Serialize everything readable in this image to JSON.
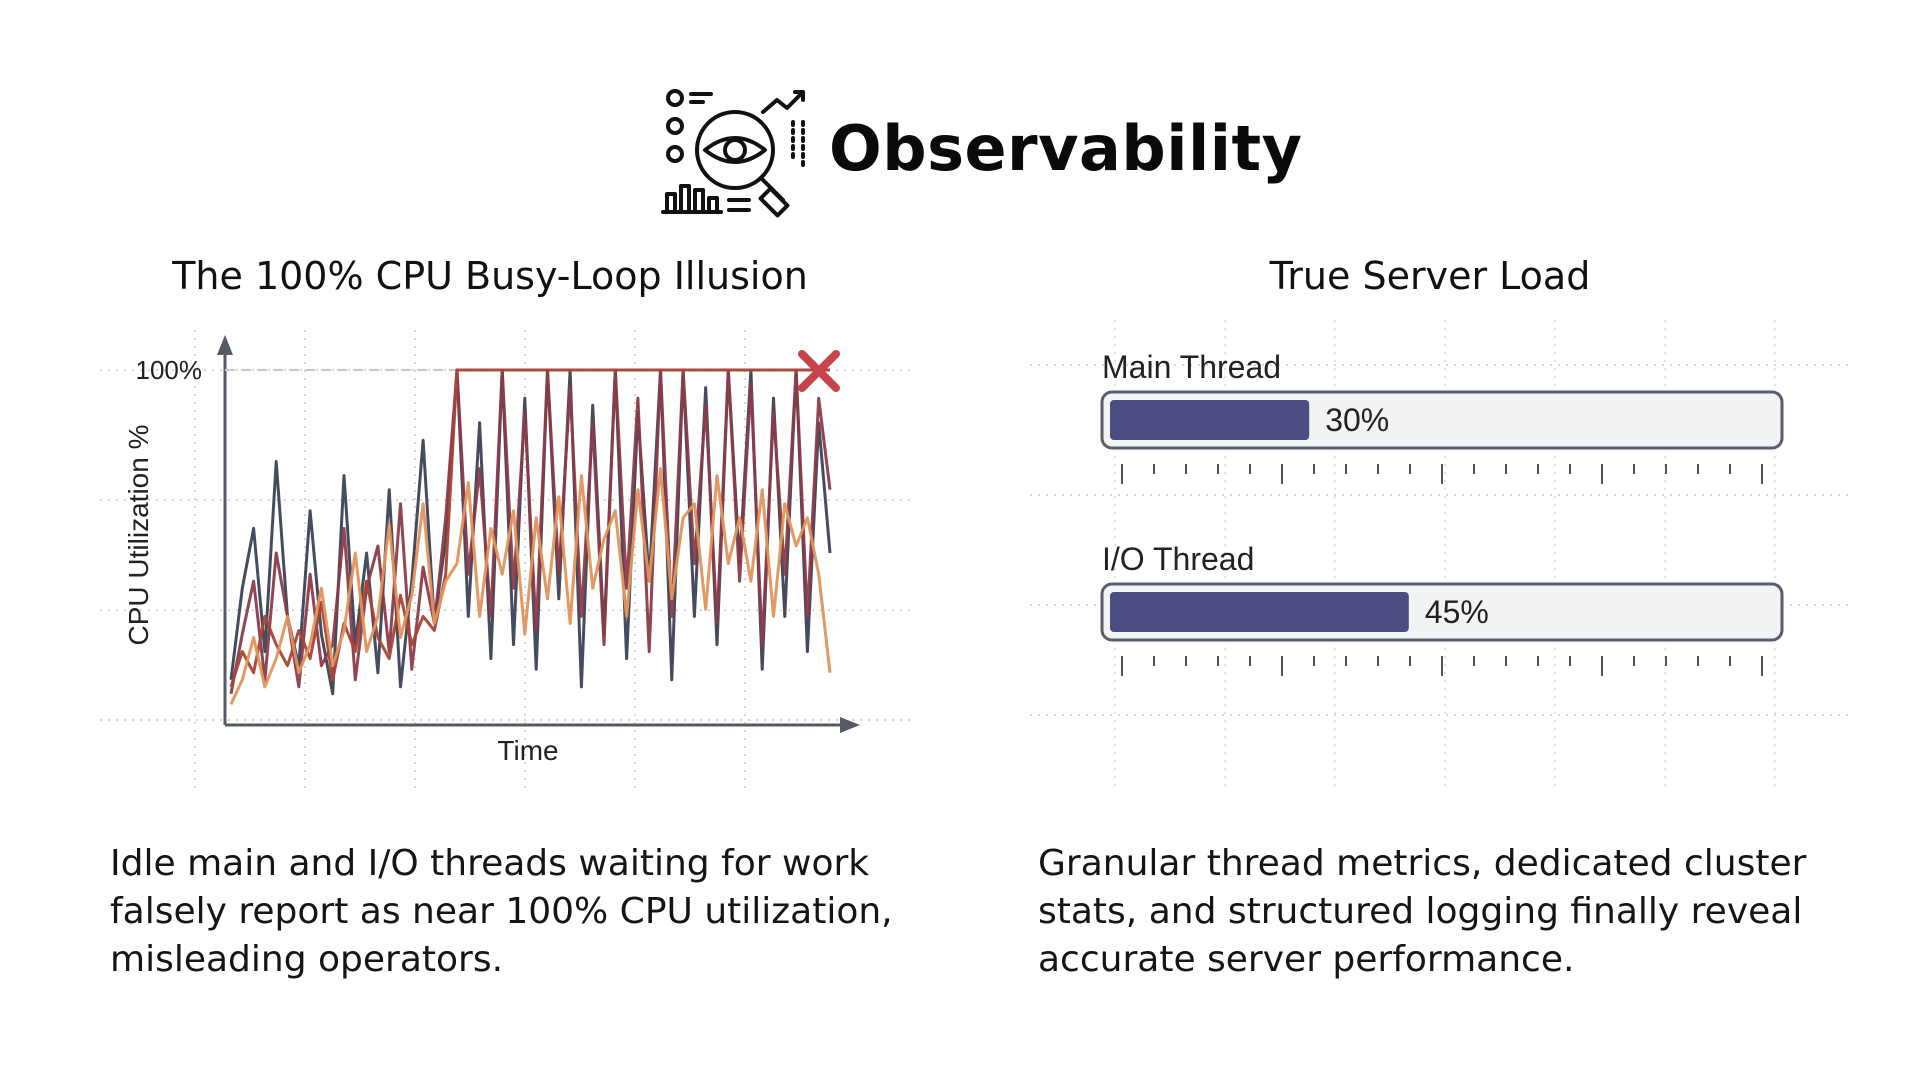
{
  "header": {
    "title": "Observability",
    "icon": "observability-eye-magnifier-icon"
  },
  "left_panel": {
    "title": "The 100% CPU Busy-Loop Illusion",
    "caption": "Idle main and I/O threads waiting for work falsely report as near 100% CPU utilization, misleading operators.",
    "marker": "x-mark-icon"
  },
  "right_panel": {
    "title": "True Server Load",
    "caption": "Granular thread metrics, dedicated cluster stats, and structured logging finally reveal accurate server performance."
  },
  "chart_data": [
    {
      "type": "line",
      "title": "",
      "xlabel": "Time",
      "ylabel": "CPU Utilization %",
      "ylim": [
        0,
        100
      ],
      "y_tick_labels": [
        "100%"
      ],
      "grid": true,
      "legend": "none",
      "colors": [
        "#3b4256",
        "#8c3b4a",
        "#a64436",
        "#e0955a"
      ],
      "series": [
        {
          "values": [
            12,
            38,
            55,
            20,
            74,
            30,
            16,
            60,
            25,
            8,
            70,
            22,
            48,
            14,
            66,
            10,
            40,
            80,
            28,
            52,
            100,
            30,
            85,
            18,
            100,
            22,
            92,
            15,
            100,
            35,
            100,
            10,
            90,
            25,
            100,
            18,
            88,
            40,
            100,
            12,
            100,
            30,
            95,
            22,
            100,
            45,
            100,
            15,
            92,
            30,
            100,
            20,
            85,
            48
          ]
        },
        {
          "values": [
            8,
            25,
            40,
            12,
            48,
            30,
            10,
            42,
            16,
            22,
            55,
            12,
            38,
            50,
            20,
            62,
            15,
            44,
            28,
            58,
            100,
            42,
            72,
            30,
            100,
            38,
            88,
            26,
            100,
            42,
            95,
            30,
            85,
            22,
            100,
            38,
            92,
            20,
            100,
            30,
            100,
            45,
            90,
            28,
            100,
            40,
            96,
            22,
            88,
            42,
            100,
            30,
            92,
            66
          ]
        },
        {
          "values": [
            10,
            20,
            14,
            30,
            22,
            16,
            26,
            18,
            34,
            12,
            28,
            20,
            40,
            24,
            18,
            36,
            22,
            30,
            26,
            42,
            100,
            100,
            100,
            100,
            100,
            100,
            100,
            100,
            100,
            100,
            100,
            100,
            100,
            100,
            100,
            100,
            100,
            100,
            100,
            100,
            100,
            100,
            100,
            100,
            100,
            100,
            100,
            100,
            100,
            100,
            100,
            100,
            100,
            100
          ]
        },
        {
          "values": [
            5,
            12,
            24,
            10,
            18,
            30,
            14,
            22,
            38,
            16,
            26,
            48,
            20,
            30,
            56,
            24,
            36,
            62,
            28,
            40,
            45,
            68,
            30,
            55,
            42,
            60,
            25,
            58,
            35,
            64,
            28,
            70,
            38,
            52,
            60,
            30,
            66,
            40,
            72,
            35,
            58,
            62,
            32,
            70,
            45,
            58,
            40,
            66,
            30,
            62,
            50,
            58,
            42,
            14
          ]
        }
      ]
    },
    {
      "type": "bar",
      "title": "True Server Load",
      "categories": [
        "Main Thread",
        "I/O Thread"
      ],
      "values": [
        30,
        45
      ],
      "value_labels": [
        "30%",
        "45%"
      ],
      "xlim": [
        0,
        100
      ],
      "bar_color": "#4c4d82",
      "track_color": "#f2f3f5"
    }
  ]
}
